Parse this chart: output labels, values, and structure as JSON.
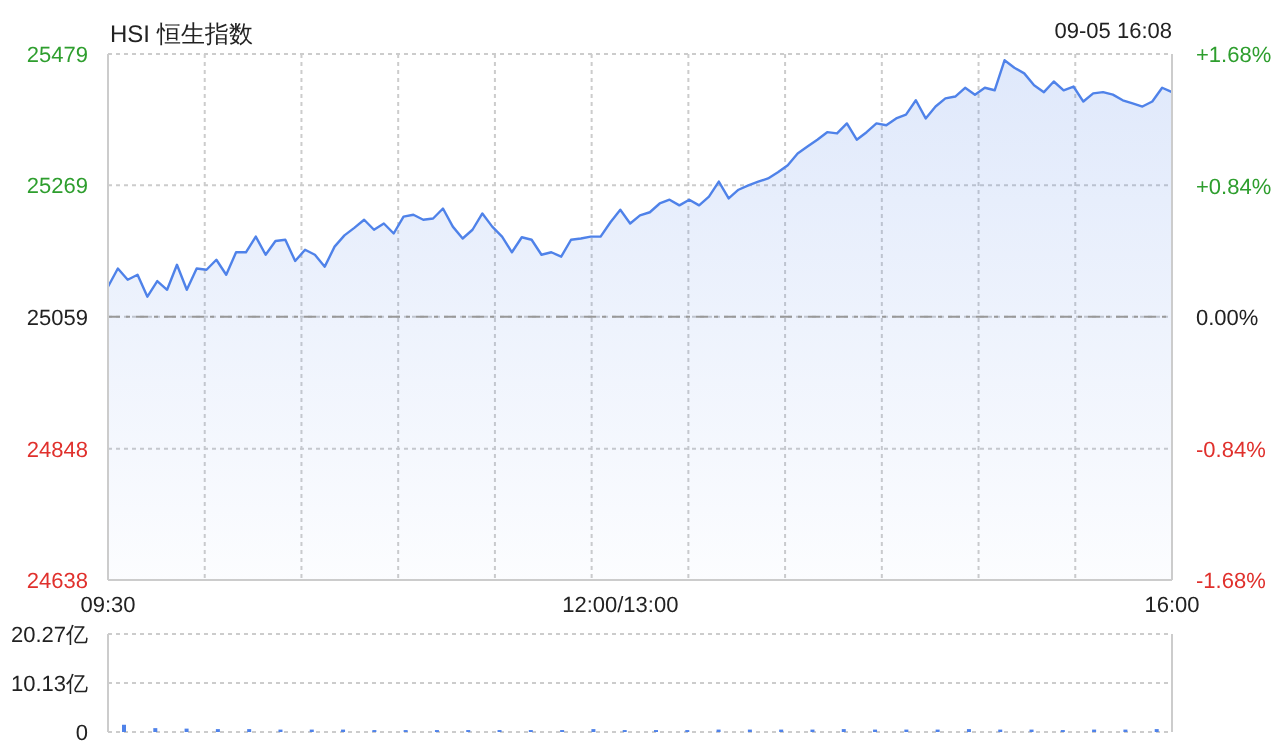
{
  "chart_data": [
    {
      "type": "area",
      "title": "HSI 恒生指数",
      "annotations": [
        "09-05 16:08"
      ],
      "categories": [
        "09:30",
        null,
        null,
        null,
        null,
        null,
        null,
        null,
        null,
        null,
        null,
        null,
        null,
        null,
        null,
        null,
        null,
        null,
        null,
        null,
        null,
        null,
        null,
        null,
        null,
        null,
        null,
        null,
        null,
        null,
        null,
        null,
        null,
        null,
        null,
        null,
        null,
        null,
        null,
        null,
        null,
        null,
        null,
        null,
        null,
        null,
        null,
        null,
        null,
        null,
        null,
        null,
        "12:00/13:00",
        null,
        null,
        null,
        null,
        null,
        null,
        null,
        null,
        null,
        null,
        null,
        null,
        null,
        null,
        null,
        null,
        null,
        null,
        null,
        null,
        null,
        null,
        null,
        null,
        null,
        null,
        null,
        null,
        null,
        null,
        null,
        null,
        null,
        null,
        null,
        null,
        null,
        null,
        null,
        null,
        null,
        null,
        null,
        null,
        null,
        null,
        null,
        null,
        null,
        null,
        null,
        null,
        null,
        null,
        null,
        "16:00"
      ],
      "series": [
        {
          "color": "#4f82e9",
          "values": [
            25107,
            25136,
            25118,
            25126,
            25091,
            25116,
            25102,
            25142,
            25102,
            25136,
            25134,
            25150,
            25126,
            25162,
            25162,
            25187,
            25158,
            25180,
            25182,
            25148,
            25166,
            25158,
            25139,
            25171,
            25189,
            25201,
            25214,
            25198,
            25208,
            25192,
            25219,
            25222,
            25214,
            25216,
            25232,
            25203,
            25184,
            25198,
            25224,
            25203,
            25187,
            25162,
            25186,
            25182,
            25158,
            25162,
            25155,
            25182,
            25184,
            25187,
            25187,
            25210,
            25230,
            25208,
            25221,
            25226,
            25240,
            25246,
            25237,
            25246,
            25237,
            25251,
            25275,
            25248,
            25262,
            25269,
            25275,
            25280,
            25290,
            25301,
            25320,
            25331,
            25342,
            25354,
            25352,
            25368,
            25342,
            25354,
            25368,
            25365,
            25376,
            25382,
            25405,
            25376,
            25395,
            25408,
            25411,
            25425,
            25414,
            25425,
            25421,
            25469,
            25457,
            25448,
            25429,
            25418,
            25435,
            25421,
            25427,
            25403,
            25416,
            25418,
            25414,
            25405,
            25400,
            25395,
            25403,
            25425,
            25418
          ]
        }
      ],
      "ylim": [
        24638,
        25479
      ],
      "yticks": [
        24638,
        24848,
        25059,
        25269,
        25479
      ],
      "y2lim": [
        -1.68,
        1.68
      ],
      "y2ticks": [
        {
          "value": -1.68,
          "label": "-1.68%"
        },
        {
          "value": -0.84,
          "label": "-0.84%"
        },
        {
          "value": 0,
          "label": "0.00%"
        },
        {
          "value": 0.84,
          "label": "+0.84%"
        },
        {
          "value": 1.68,
          "label": "+1.68%"
        }
      ],
      "ref_lines": [
        {
          "axis": "y",
          "value": 25059,
          "color": "#999999",
          "line_style": "dashed"
        }
      ],
      "grid": true
    },
    {
      "type": "bar",
      "color": "#4f82e9",
      "categories": [
        null,
        null,
        null,
        null,
        null,
        null,
        null,
        null,
        null,
        null,
        null,
        null,
        null,
        null,
        null,
        null,
        null,
        null,
        null,
        null,
        null,
        null,
        null,
        null,
        null,
        null,
        null,
        null,
        null,
        null,
        null,
        null,
        null,
        null
      ],
      "values": [
        1.5,
        0.8,
        0.7,
        0.6,
        0.6,
        0.5,
        0.5,
        0.5,
        0.4,
        0.4,
        0.4,
        0.4,
        0.4,
        0.4,
        0.4,
        0.6,
        0.4,
        0.4,
        0.4,
        0.5,
        0.5,
        0.5,
        0.5,
        0.6,
        0.5,
        0.5,
        0.5,
        0.6,
        0.5,
        0.5,
        0.4,
        0.5,
        0.5,
        0.6
      ],
      "ylim": [
        0,
        20.27
      ],
      "yticks": [
        0,
        {
          "value": 10.13,
          "label": "10.13亿"
        },
        {
          "value": 20.27,
          "label": "20.27亿"
        }
      ],
      "tick_labels": "y",
      "grid": "y"
    }
  ]
}
